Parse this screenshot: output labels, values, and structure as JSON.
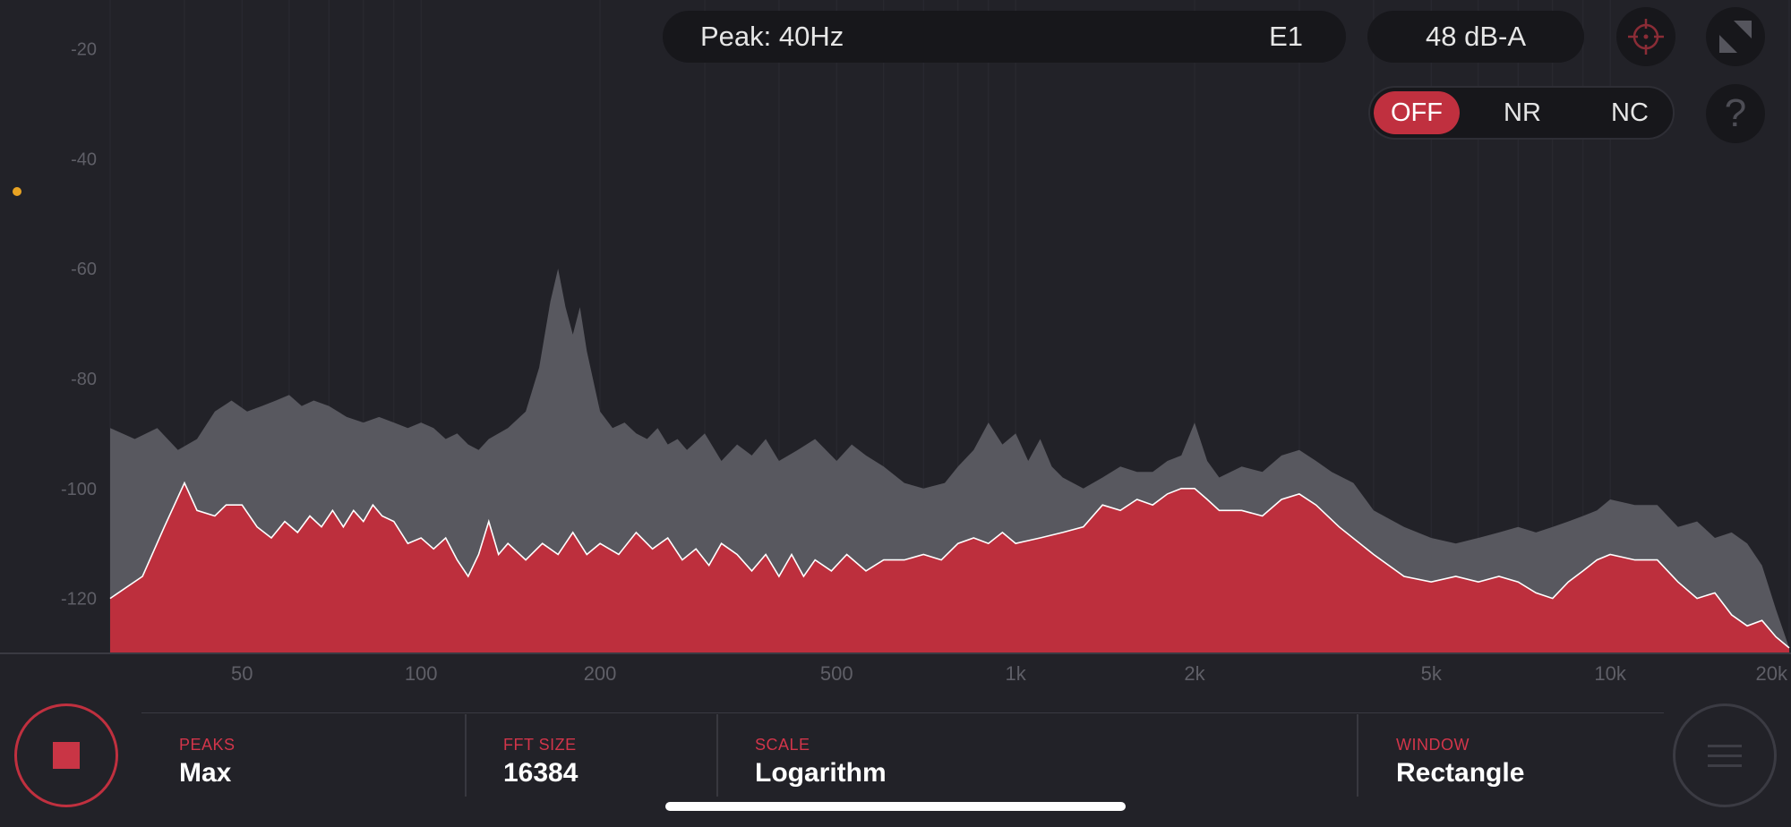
{
  "header": {
    "peak_label": "Peak: 40Hz",
    "note": "E1",
    "level": "48 dB-A"
  },
  "icons": {
    "target": "crosshair-target-icon",
    "expand": "expand-diagonal-icon",
    "help": "?"
  },
  "mode_toggle": {
    "options": [
      "OFF",
      "NR",
      "NC"
    ],
    "selected": "OFF"
  },
  "settings": {
    "peaks": {
      "label": "PEAKS",
      "value": "Max"
    },
    "fft_size": {
      "label": "FFT SIZE",
      "value": "16384"
    },
    "scale": {
      "label": "SCALE",
      "value": "Logarithm"
    },
    "window": {
      "label": "WINDOW",
      "value": "Rectangle"
    }
  },
  "colors": {
    "background": "#222228",
    "accent_red": "#c0303f",
    "peak_gray": "#58585f",
    "current_red": "#bd2f3d",
    "indicator_orange": "#e8a323"
  },
  "chart_data": {
    "type": "area",
    "x_scale": "log",
    "x_ticks": [
      {
        "value": 50,
        "label": "50"
      },
      {
        "value": 100,
        "label": "100"
      },
      {
        "value": 200,
        "label": "200"
      },
      {
        "value": 500,
        "label": "500"
      },
      {
        "value": 1000,
        "label": "1k"
      },
      {
        "value": 2000,
        "label": "2k"
      },
      {
        "value": 5000,
        "label": "5k"
      },
      {
        "value": 10000,
        "label": "10k"
      },
      {
        "value": 20000,
        "label": "20k"
      }
    ],
    "y_ticks": [
      -20,
      -40,
      -60,
      -80,
      -100,
      -120
    ],
    "xlim": [
      30,
      20000
    ],
    "ylim": [
      -130,
      -17
    ],
    "series": [
      {
        "name": "",
        "style": "gray-area",
        "points": [
          [
            30,
            -89
          ],
          [
            33,
            -91
          ],
          [
            36,
            -89
          ],
          [
            39,
            -93
          ],
          [
            42,
            -91
          ],
          [
            45,
            -86
          ],
          [
            48,
            -84
          ],
          [
            51,
            -86
          ],
          [
            54,
            -85
          ],
          [
            57,
            -84
          ],
          [
            60,
            -83
          ],
          [
            63,
            -85
          ],
          [
            66,
            -84
          ],
          [
            70,
            -85
          ],
          [
            75,
            -87
          ],
          [
            80,
            -88
          ],
          [
            85,
            -87
          ],
          [
            90,
            -88
          ],
          [
            95,
            -89
          ],
          [
            100,
            -88
          ],
          [
            105,
            -89
          ],
          [
            110,
            -91
          ],
          [
            115,
            -90
          ],
          [
            120,
            -92
          ],
          [
            125,
            -93
          ],
          [
            130,
            -91
          ],
          [
            140,
            -89
          ],
          [
            150,
            -86
          ],
          [
            158,
            -78
          ],
          [
            165,
            -66
          ],
          [
            170,
            -60
          ],
          [
            175,
            -67
          ],
          [
            180,
            -72
          ],
          [
            185,
            -67
          ],
          [
            190,
            -75
          ],
          [
            200,
            -86
          ],
          [
            210,
            -89
          ],
          [
            220,
            -88
          ],
          [
            230,
            -90
          ],
          [
            240,
            -91
          ],
          [
            250,
            -89
          ],
          [
            260,
            -92
          ],
          [
            270,
            -91
          ],
          [
            280,
            -93
          ],
          [
            300,
            -90
          ],
          [
            320,
            -95
          ],
          [
            340,
            -92
          ],
          [
            360,
            -94
          ],
          [
            380,
            -91
          ],
          [
            400,
            -95
          ],
          [
            430,
            -93
          ],
          [
            460,
            -91
          ],
          [
            500,
            -95
          ],
          [
            530,
            -92
          ],
          [
            560,
            -94
          ],
          [
            600,
            -96
          ],
          [
            650,
            -99
          ],
          [
            700,
            -100
          ],
          [
            760,
            -99
          ],
          [
            800,
            -96
          ],
          [
            850,
            -93
          ],
          [
            900,
            -88
          ],
          [
            950,
            -92
          ],
          [
            1000,
            -90
          ],
          [
            1050,
            -95
          ],
          [
            1100,
            -91
          ],
          [
            1150,
            -96
          ],
          [
            1200,
            -98
          ],
          [
            1300,
            -100
          ],
          [
            1400,
            -98
          ],
          [
            1500,
            -96
          ],
          [
            1600,
            -97
          ],
          [
            1700,
            -97
          ],
          [
            1800,
            -95
          ],
          [
            1900,
            -94
          ],
          [
            2000,
            -88
          ],
          [
            2100,
            -95
          ],
          [
            2200,
            -98
          ],
          [
            2400,
            -96
          ],
          [
            2600,
            -97
          ],
          [
            2800,
            -94
          ],
          [
            3000,
            -93
          ],
          [
            3200,
            -95
          ],
          [
            3400,
            -97
          ],
          [
            3700,
            -99
          ],
          [
            4000,
            -104
          ],
          [
            4500,
            -107
          ],
          [
            5000,
            -109
          ],
          [
            5500,
            -110
          ],
          [
            6000,
            -109
          ],
          [
            6500,
            -108
          ],
          [
            7000,
            -107
          ],
          [
            7500,
            -108
          ],
          [
            8000,
            -107
          ],
          [
            8500,
            -106
          ],
          [
            9000,
            -105
          ],
          [
            9500,
            -104
          ],
          [
            10000,
            -102
          ],
          [
            11000,
            -103
          ],
          [
            12000,
            -103
          ],
          [
            13000,
            -107
          ],
          [
            14000,
            -106
          ],
          [
            15000,
            -109
          ],
          [
            16000,
            -108
          ],
          [
            17000,
            -110
          ],
          [
            18000,
            -114
          ],
          [
            19000,
            -122
          ],
          [
            20000,
            -129
          ]
        ]
      },
      {
        "name": "",
        "style": "red-area",
        "points": [
          [
            30,
            -120
          ],
          [
            34,
            -116
          ],
          [
            37,
            -107
          ],
          [
            40,
            -99
          ],
          [
            42,
            -104
          ],
          [
            45,
            -105
          ],
          [
            47,
            -103
          ],
          [
            50,
            -103
          ],
          [
            53,
            -107
          ],
          [
            56,
            -109
          ],
          [
            59,
            -106
          ],
          [
            62,
            -108
          ],
          [
            65,
            -105
          ],
          [
            68,
            -107
          ],
          [
            71,
            -104
          ],
          [
            74,
            -107
          ],
          [
            77,
            -104
          ],
          [
            80,
            -106
          ],
          [
            83,
            -103
          ],
          [
            86,
            -105
          ],
          [
            90,
            -106
          ],
          [
            95,
            -110
          ],
          [
            100,
            -109
          ],
          [
            105,
            -111
          ],
          [
            110,
            -109
          ],
          [
            115,
            -113
          ],
          [
            120,
            -116
          ],
          [
            125,
            -112
          ],
          [
            130,
            -106
          ],
          [
            135,
            -112
          ],
          [
            140,
            -110
          ],
          [
            150,
            -113
          ],
          [
            160,
            -110
          ],
          [
            170,
            -112
          ],
          [
            180,
            -108
          ],
          [
            190,
            -112
          ],
          [
            200,
            -110
          ],
          [
            215,
            -112
          ],
          [
            230,
            -108
          ],
          [
            245,
            -111
          ],
          [
            260,
            -109
          ],
          [
            275,
            -113
          ],
          [
            290,
            -111
          ],
          [
            305,
            -114
          ],
          [
            320,
            -110
          ],
          [
            340,
            -112
          ],
          [
            360,
            -115
          ],
          [
            380,
            -112
          ],
          [
            400,
            -116
          ],
          [
            420,
            -112
          ],
          [
            440,
            -116
          ],
          [
            460,
            -113
          ],
          [
            490,
            -115
          ],
          [
            520,
            -112
          ],
          [
            560,
            -115
          ],
          [
            600,
            -113
          ],
          [
            650,
            -113
          ],
          [
            700,
            -112
          ],
          [
            750,
            -113
          ],
          [
            800,
            -110
          ],
          [
            850,
            -109
          ],
          [
            900,
            -110
          ],
          [
            950,
            -108
          ],
          [
            1000,
            -110
          ],
          [
            1100,
            -109
          ],
          [
            1200,
            -108
          ],
          [
            1300,
            -107
          ],
          [
            1400,
            -103
          ],
          [
            1500,
            -104
          ],
          [
            1600,
            -102
          ],
          [
            1700,
            -103
          ],
          [
            1800,
            -101
          ],
          [
            1900,
            -100
          ],
          [
            2000,
            -100
          ],
          [
            2100,
            -102
          ],
          [
            2200,
            -104
          ],
          [
            2400,
            -104
          ],
          [
            2600,
            -105
          ],
          [
            2800,
            -102
          ],
          [
            3000,
            -101
          ],
          [
            3200,
            -103
          ],
          [
            3500,
            -107
          ],
          [
            4000,
            -112
          ],
          [
            4500,
            -116
          ],
          [
            5000,
            -117
          ],
          [
            5500,
            -116
          ],
          [
            6000,
            -117
          ],
          [
            6500,
            -116
          ],
          [
            7000,
            -117
          ],
          [
            7500,
            -119
          ],
          [
            8000,
            -120
          ],
          [
            8500,
            -117
          ],
          [
            9000,
            -115
          ],
          [
            9500,
            -113
          ],
          [
            10000,
            -112
          ],
          [
            11000,
            -113
          ],
          [
            12000,
            -113
          ],
          [
            13000,
            -117
          ],
          [
            14000,
            -120
          ],
          [
            15000,
            -119
          ],
          [
            16000,
            -123
          ],
          [
            17000,
            -125
          ],
          [
            18000,
            -124
          ],
          [
            19000,
            -127
          ],
          [
            20000,
            -129
          ]
        ]
      }
    ]
  }
}
